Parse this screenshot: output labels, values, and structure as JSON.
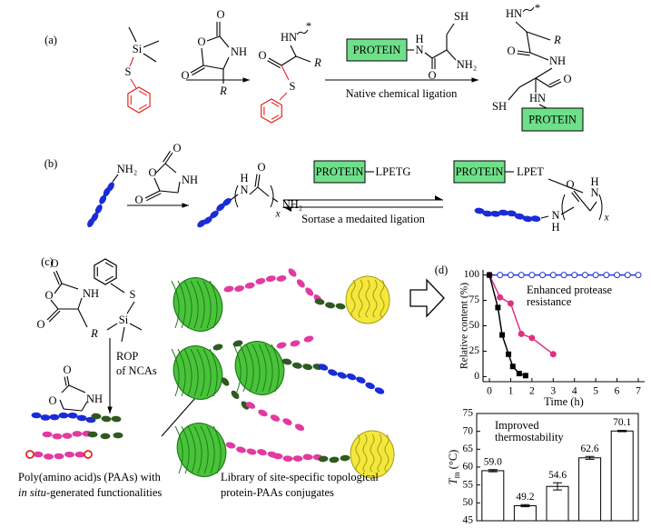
{
  "panel_a": {
    "label": "(a)",
    "reagent": [
      "Si",
      "S"
    ],
    "nca": [
      "O",
      "O",
      "O",
      "NH",
      "R"
    ],
    "thioester": [
      "HN",
      "*",
      "R",
      "O",
      "S"
    ],
    "protein": "PROTEIN",
    "cysteine": [
      "N",
      "H",
      "SH",
      "NH₂",
      "O"
    ],
    "arrow_label": "Native chemical ligation",
    "product": [
      "HN",
      "*",
      "R",
      "O",
      "NH",
      "SH",
      "O",
      "HN"
    ],
    "product_protein": "PROTEIN"
  },
  "panel_b": {
    "label": "(b)",
    "amine": "NH₂",
    "nca": [
      "O",
      "O",
      "O",
      "NH"
    ],
    "polymer": [
      "H",
      "N",
      "x",
      "NH₂",
      "O"
    ],
    "protein": "PROTEIN",
    "tag": "LPETG",
    "arrow_label": "Sortase a medaited ligation",
    "product_protein": "PROTEIN",
    "product_tag": "LPET",
    "product": [
      "O",
      "N",
      "H",
      "x",
      "N",
      "H"
    ]
  },
  "panel_c": {
    "label": "(c)",
    "nca": [
      "O",
      "O",
      "O",
      "NH",
      "R"
    ],
    "initiator": [
      "S",
      "Si"
    ],
    "arrow_label": [
      "ROP",
      "of NCAs"
    ],
    "nca_2": [
      "O",
      "O",
      "NH"
    ],
    "caption_left": [
      "Poly(amino acid)s (PAAs) with",
      "in situ",
      "-generated functionalities"
    ],
    "caption_right": [
      "Library of site-specific topological",
      "protein-PAAs conjugates"
    ]
  },
  "chart_data": [
    {
      "type": "line",
      "panel_label": "(d)",
      "y_label": "Relative content (%)",
      "x_label": "Time (h)",
      "annotation": [
        "Enhanced protease",
        "resistance"
      ],
      "xlim": [
        -0.3,
        7.3
      ],
      "xticks": [
        0,
        1,
        2,
        3,
        4,
        5,
        6,
        7
      ],
      "ylim": [
        -5,
        105
      ],
      "yticks": [
        0,
        25,
        50,
        75,
        100
      ],
      "series": [
        {
          "color": "#2233dd",
          "marker": "open-circle",
          "x": [
            0,
            0.5,
            1,
            1.5,
            2,
            2.5,
            3,
            3.5,
            4,
            4.5,
            5,
            5.5,
            6,
            6.5,
            7
          ],
          "values": [
            100,
            100,
            100,
            100,
            100,
            100,
            100,
            100,
            100,
            100,
            100,
            100,
            100,
            100,
            100
          ]
        },
        {
          "color": "#e0307f",
          "marker": "circle",
          "x": [
            0,
            0.5,
            1,
            1.5,
            2,
            3
          ],
          "values": [
            100,
            78,
            72,
            42,
            38,
            22
          ]
        },
        {
          "color": "#000000",
          "marker": "square",
          "x": [
            0,
            0.4,
            0.6,
            0.9,
            1.1,
            1.4,
            1.7
          ],
          "values": [
            100,
            68,
            41,
            22,
            10,
            3,
            1
          ]
        }
      ]
    },
    {
      "type": "bar",
      "y_label": "T",
      "y_label_sub": "m",
      "y_label_unit": "(°C)",
      "annotation": [
        "Improved",
        "thermostability"
      ],
      "ylim": [
        45,
        75
      ],
      "yticks": [
        45,
        50,
        55,
        60,
        65,
        70,
        75
      ],
      "values": [
        59.0,
        49.2,
        54.6,
        62.6,
        70.1
      ],
      "value_labels": [
        "59.0",
        "49.2",
        "54.6",
        "62.6",
        "70.1"
      ],
      "errors": [
        0.3,
        0.3,
        1.0,
        0.4,
        0.2
      ],
      "color": "#ffffff"
    }
  ]
}
